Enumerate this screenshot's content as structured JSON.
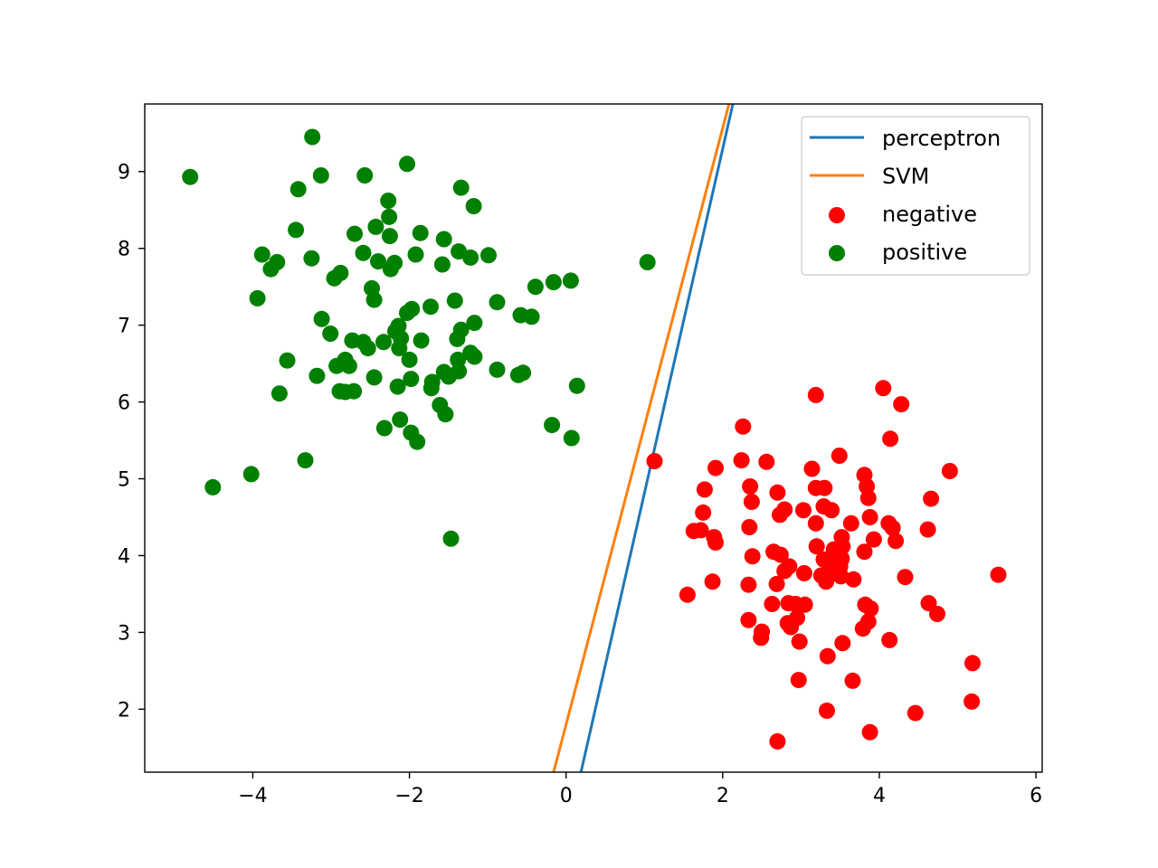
{
  "chart_data": {
    "type": "scatter",
    "title": "",
    "xlabel": "",
    "ylabel": "",
    "xlim": [
      -5.38,
      6.08
    ],
    "ylim": [
      1.18,
      9.88
    ],
    "xticks": [
      -4,
      -2,
      0,
      2,
      4,
      6
    ],
    "xtick_labels": [
      "−4",
      "−2",
      "0",
      "2",
      "4",
      "6"
    ],
    "yticks": [
      2,
      3,
      4,
      5,
      6,
      7,
      8,
      9
    ],
    "ytick_labels": [
      "2",
      "3",
      "4",
      "5",
      "6",
      "7",
      "8",
      "9"
    ],
    "grid": false,
    "legend_position": "top-right",
    "lines": [
      {
        "name": "perceptron",
        "color": "#1f77b4",
        "points": [
          [
            0.19,
            1.18
          ],
          [
            2.13,
            9.88
          ]
        ]
      },
      {
        "name": "SVM",
        "color": "#ff7f0e",
        "points": [
          [
            -0.16,
            1.18
          ],
          [
            2.08,
            9.88
          ]
        ]
      }
    ],
    "scatter": [
      {
        "name": "negative",
        "color": "#ff0000",
        "points": [
          [
            1.13,
            5.23
          ],
          [
            3.19,
            6.09
          ],
          [
            4.05,
            6.18
          ],
          [
            4.28,
            5.97
          ],
          [
            4.14,
            5.52
          ],
          [
            2.26,
            5.68
          ],
          [
            2.24,
            5.24
          ],
          [
            2.56,
            5.22
          ],
          [
            3.49,
            5.3
          ],
          [
            4.9,
            5.1
          ],
          [
            1.91,
            5.14
          ],
          [
            3.14,
            5.13
          ],
          [
            3.81,
            5.05
          ],
          [
            1.77,
            4.86
          ],
          [
            2.35,
            4.9
          ],
          [
            2.7,
            4.82
          ],
          [
            3.19,
            4.88
          ],
          [
            3.3,
            4.88
          ],
          [
            3.84,
            4.9
          ],
          [
            3.86,
            4.75
          ],
          [
            4.66,
            4.74
          ],
          [
            2.37,
            4.7
          ],
          [
            3.29,
            4.64
          ],
          [
            1.75,
            4.56
          ],
          [
            2.73,
            4.53
          ],
          [
            2.79,
            4.6
          ],
          [
            3.03,
            4.59
          ],
          [
            3.39,
            4.59
          ],
          [
            3.88,
            4.5
          ],
          [
            3.19,
            4.42
          ],
          [
            3.64,
            4.42
          ],
          [
            4.12,
            4.42
          ],
          [
            4.17,
            4.36
          ],
          [
            1.63,
            4.32
          ],
          [
            1.72,
            4.33
          ],
          [
            2.34,
            4.37
          ],
          [
            4.62,
            4.34
          ],
          [
            1.89,
            4.24
          ],
          [
            1.91,
            4.17
          ],
          [
            3.52,
            4.24
          ],
          [
            3.93,
            4.21
          ],
          [
            4.21,
            4.19
          ],
          [
            3.2,
            4.12
          ],
          [
            3.42,
            4.08
          ],
          [
            3.53,
            4.12
          ],
          [
            2.38,
            3.99
          ],
          [
            2.65,
            4.05
          ],
          [
            2.74,
            4.01
          ],
          [
            3.81,
            4.05
          ],
          [
            3.29,
            3.95
          ],
          [
            3.44,
            3.95
          ],
          [
            3.52,
            3.96
          ],
          [
            2.85,
            3.86
          ],
          [
            3.38,
            3.86
          ],
          [
            3.5,
            3.86
          ],
          [
            2.79,
            3.8
          ],
          [
            3.04,
            3.77
          ],
          [
            3.26,
            3.74
          ],
          [
            3.42,
            3.77
          ],
          [
            3.51,
            3.73
          ],
          [
            3.67,
            3.69
          ],
          [
            4.33,
            3.72
          ],
          [
            5.52,
            3.75
          ],
          [
            1.87,
            3.66
          ],
          [
            2.33,
            3.62
          ],
          [
            2.69,
            3.63
          ],
          [
            3.32,
            3.66
          ],
          [
            1.55,
            3.49
          ],
          [
            2.63,
            3.37
          ],
          [
            2.84,
            3.38
          ],
          [
            2.93,
            3.37
          ],
          [
            3.05,
            3.36
          ],
          [
            3.82,
            3.36
          ],
          [
            3.89,
            3.31
          ],
          [
            4.63,
            3.38
          ],
          [
            4.74,
            3.24
          ],
          [
            2.33,
            3.16
          ],
          [
            2.83,
            3.12
          ],
          [
            2.95,
            3.19
          ],
          [
            2.87,
            3.07
          ],
          [
            3.86,
            3.14
          ],
          [
            3.79,
            3.05
          ],
          [
            2.5,
            3.01
          ],
          [
            2.49,
            2.93
          ],
          [
            2.98,
            2.88
          ],
          [
            3.53,
            2.86
          ],
          [
            4.13,
            2.9
          ],
          [
            3.34,
            2.69
          ],
          [
            5.19,
            2.6
          ],
          [
            2.97,
            2.38
          ],
          [
            3.66,
            2.37
          ],
          [
            5.18,
            2.1
          ],
          [
            3.33,
            1.98
          ],
          [
            4.46,
            1.95
          ],
          [
            3.88,
            1.7
          ],
          [
            2.7,
            1.58
          ]
        ]
      },
      {
        "name": "positive",
        "color": "#008000",
        "points": [
          [
            -3.24,
            9.45
          ],
          [
            -2.03,
            9.1
          ],
          [
            -4.8,
            8.93
          ],
          [
            -3.13,
            8.95
          ],
          [
            -2.57,
            8.95
          ],
          [
            -3.42,
            8.77
          ],
          [
            -1.34,
            8.79
          ],
          [
            -2.27,
            8.62
          ],
          [
            -1.18,
            8.55
          ],
          [
            -2.26,
            8.41
          ],
          [
            -2.43,
            8.28
          ],
          [
            -3.45,
            8.24
          ],
          [
            -2.7,
            8.19
          ],
          [
            -1.86,
            8.2
          ],
          [
            -2.25,
            8.16
          ],
          [
            -1.56,
            8.12
          ],
          [
            -1.37,
            7.96
          ],
          [
            -2.59,
            7.94
          ],
          [
            -1.92,
            7.92
          ],
          [
            -3.88,
            7.92
          ],
          [
            -1.22,
            7.88
          ],
          [
            -0.99,
            7.91
          ],
          [
            -3.25,
            7.87
          ],
          [
            -3.69,
            7.82
          ],
          [
            -2.4,
            7.83
          ],
          [
            -2.19,
            7.81
          ],
          [
            -2.24,
            7.73
          ],
          [
            -1.58,
            7.79
          ],
          [
            -3.77,
            7.73
          ],
          [
            -2.88,
            7.68
          ],
          [
            -2.96,
            7.61
          ],
          [
            1.04,
            7.82
          ],
          [
            -0.39,
            7.5
          ],
          [
            -0.16,
            7.56
          ],
          [
            0.06,
            7.58
          ],
          [
            -2.48,
            7.48
          ],
          [
            -2.45,
            7.33
          ],
          [
            -3.94,
            7.35
          ],
          [
            -1.42,
            7.32
          ],
          [
            -0.88,
            7.3
          ],
          [
            -1.73,
            7.24
          ],
          [
            -2.03,
            7.16
          ],
          [
            -1.97,
            7.21
          ],
          [
            -0.58,
            7.13
          ],
          [
            -0.44,
            7.11
          ],
          [
            -3.12,
            7.08
          ],
          [
            -1.17,
            7.03
          ],
          [
            -2.14,
            6.99
          ],
          [
            -2.18,
            6.92
          ],
          [
            -1.34,
            6.94
          ],
          [
            -3.01,
            6.89
          ],
          [
            -2.11,
            6.83
          ],
          [
            -1.85,
            6.8
          ],
          [
            -1.39,
            6.82
          ],
          [
            -2.73,
            6.8
          ],
          [
            -2.59,
            6.78
          ],
          [
            -2.33,
            6.78
          ],
          [
            -2.53,
            6.7
          ],
          [
            -2.13,
            6.7
          ],
          [
            -1.22,
            6.64
          ],
          [
            -1.17,
            6.59
          ],
          [
            -2.0,
            6.55
          ],
          [
            -1.38,
            6.55
          ],
          [
            -2.82,
            6.55
          ],
          [
            -3.56,
            6.54
          ],
          [
            -2.77,
            6.47
          ],
          [
            -2.93,
            6.47
          ],
          [
            -0.88,
            6.42
          ],
          [
            -0.55,
            6.38
          ],
          [
            -0.61,
            6.35
          ],
          [
            -1.56,
            6.39
          ],
          [
            -1.5,
            6.33
          ],
          [
            -1.37,
            6.4
          ],
          [
            -3.18,
            6.34
          ],
          [
            -2.45,
            6.32
          ],
          [
            -1.98,
            6.3
          ],
          [
            -1.71,
            6.26
          ],
          [
            -1.72,
            6.18
          ],
          [
            -2.15,
            6.2
          ],
          [
            -2.89,
            6.14
          ],
          [
            -2.82,
            6.13
          ],
          [
            -2.71,
            6.14
          ],
          [
            -3.66,
            6.11
          ],
          [
            0.14,
            6.21
          ],
          [
            -1.61,
            5.96
          ],
          [
            -1.54,
            5.84
          ],
          [
            -2.12,
            5.77
          ],
          [
            -0.18,
            5.7
          ],
          [
            -2.32,
            5.66
          ],
          [
            -1.98,
            5.6
          ],
          [
            -1.9,
            5.48
          ],
          [
            0.07,
            5.53
          ],
          [
            -3.33,
            5.24
          ],
          [
            -4.02,
            5.06
          ],
          [
            -4.51,
            4.89
          ],
          [
            -1.47,
            4.22
          ]
        ]
      }
    ]
  }
}
